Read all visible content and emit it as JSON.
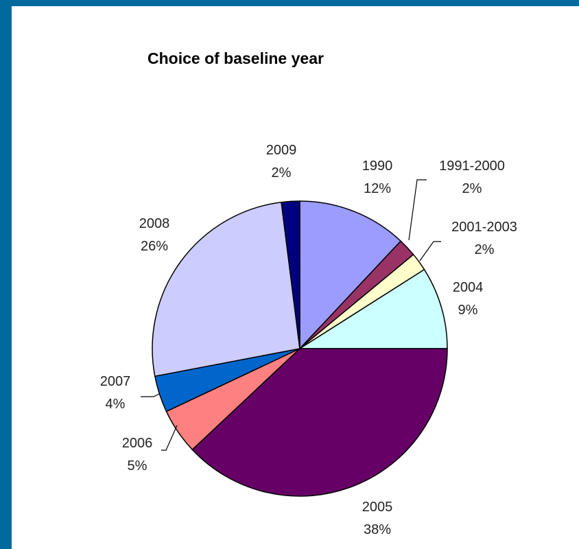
{
  "chart_data": {
    "type": "pie",
    "title": "Choice of baseline year",
    "slices": [
      {
        "label": "1990",
        "value": 12,
        "percent_label": "12%",
        "color": "#9c9cff"
      },
      {
        "label": "1991-2000",
        "value": 2,
        "percent_label": "2%",
        "color": "#993366"
      },
      {
        "label": "2001-2003",
        "value": 2,
        "percent_label": "2%",
        "color": "#ffffcc"
      },
      {
        "label": "2004",
        "value": 9,
        "percent_label": "9%",
        "color": "#ccffff"
      },
      {
        "label": "2005",
        "value": 38,
        "percent_label": "38%",
        "color": "#660066"
      },
      {
        "label": "2006",
        "value": 5,
        "percent_label": "5%",
        "color": "#ff8080"
      },
      {
        "label": "2007",
        "value": 4,
        "percent_label": "4%",
        "color": "#0066cc"
      },
      {
        "label": "2008",
        "value": 26,
        "percent_label": "26%",
        "color": "#ccccff"
      },
      {
        "label": "2009",
        "value": 2,
        "percent_label": "2%",
        "color": "#000080"
      }
    ],
    "legend": "none",
    "grid": false
  },
  "colors": {
    "background_frame": "#006a9e",
    "panel": "#ffffff"
  }
}
